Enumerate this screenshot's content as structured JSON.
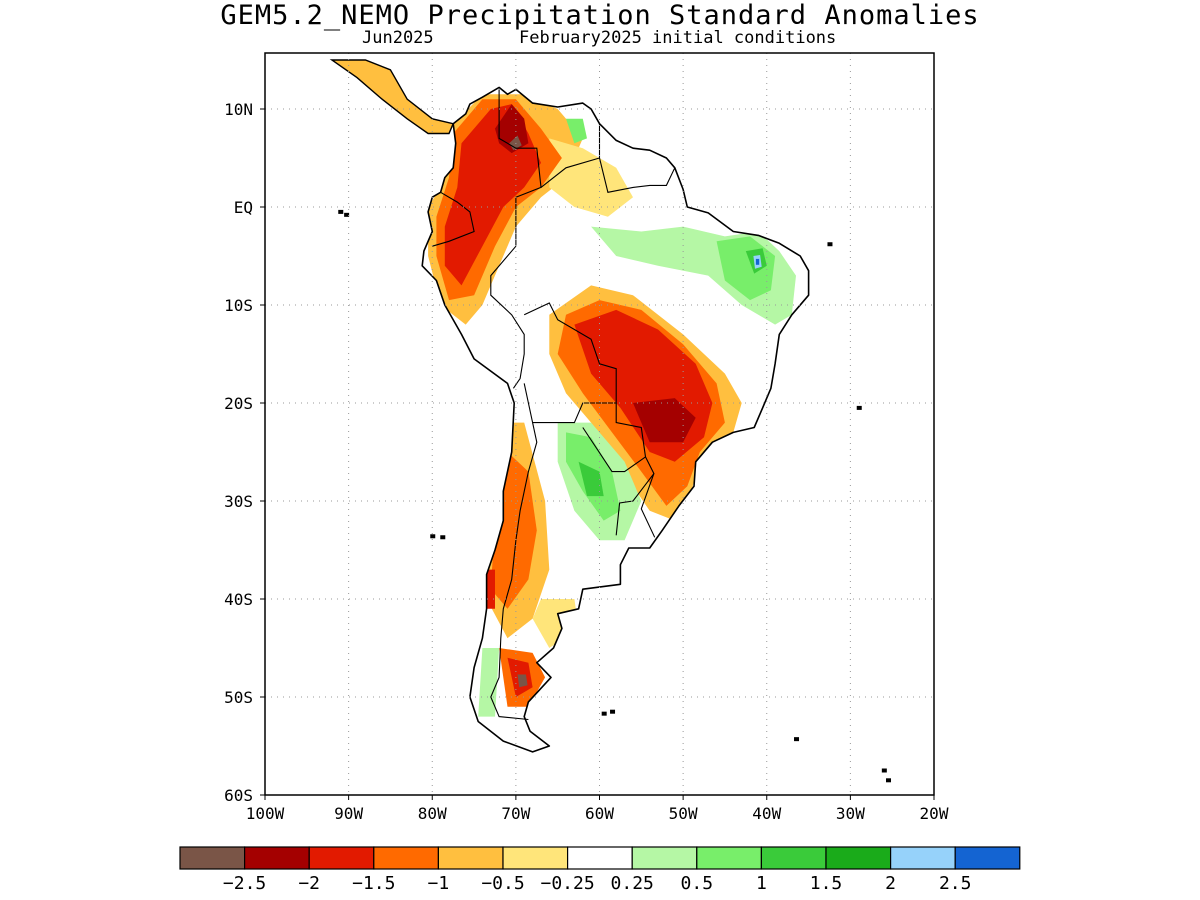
{
  "title": "GEM5.2_NEMO Precipitation Standard Anomalies",
  "subtitle_left": "Jun2025",
  "subtitle_right": "February2025 initial conditions",
  "map": {
    "lon_range": [
      -100,
      -20
    ],
    "lat_range": [
      -60,
      15
    ],
    "lon_ticks": [
      -100,
      -90,
      -80,
      -70,
      -60,
      -50,
      -40,
      -30,
      -20
    ],
    "lon_tick_labels": [
      "100W",
      "90W",
      "80W",
      "70W",
      "60W",
      "50W",
      "40W",
      "30W",
      "20W"
    ],
    "lat_ticks": [
      10,
      0,
      -10,
      -20,
      -30,
      -40,
      -50,
      -60
    ],
    "lat_tick_labels": [
      "10N",
      "EQ",
      "10S",
      "20S",
      "30S",
      "40S",
      "50S",
      "60S"
    ],
    "grid": "dotted"
  },
  "colorbar": {
    "colors": [
      "#7a5547",
      "#a40000",
      "#e21a00",
      "#ff6a00",
      "#ffbf3f",
      "#ffe57a",
      "#ffffff",
      "#b5f7a5",
      "#78ee6a",
      "#3acb3a",
      "#1aab1a",
      "#96d2fa",
      "#1464d2"
    ],
    "labels": [
      "−2.5",
      "−2",
      "−1.5",
      "−1",
      "−0.5",
      "−0.25",
      "0.25",
      "0.5",
      "1",
      "1.5",
      "2",
      "2.5"
    ]
  },
  "anomaly_regions": [
    {
      "level": "-2",
      "color": "#a40000",
      "area": "western Venezuela / Colombia"
    },
    {
      "level": "-2.5",
      "color": "#7a5547",
      "area": "Venezuela"
    },
    {
      "level": "-1.5",
      "color": "#e21a00",
      "area": "Colombia / Ecuador / Peru"
    },
    {
      "level": "-1.5",
      "color": "#e21a00",
      "area": "central Brazil / Mato Grosso"
    },
    {
      "level": "-2",
      "color": "#a40000",
      "area": "southern Brazil"
    },
    {
      "level": "-2.5",
      "color": "#7a5547",
      "area": "Patagonia"
    },
    {
      "level": "1",
      "color": "#78ee6a",
      "area": "Northeast Brazil"
    },
    {
      "level": "2.5",
      "color": "#1464d2",
      "area": "Northeast Brazil"
    },
    {
      "level": "1",
      "color": "#78ee6a",
      "area": "northern Argentina / Paraguay"
    }
  ]
}
